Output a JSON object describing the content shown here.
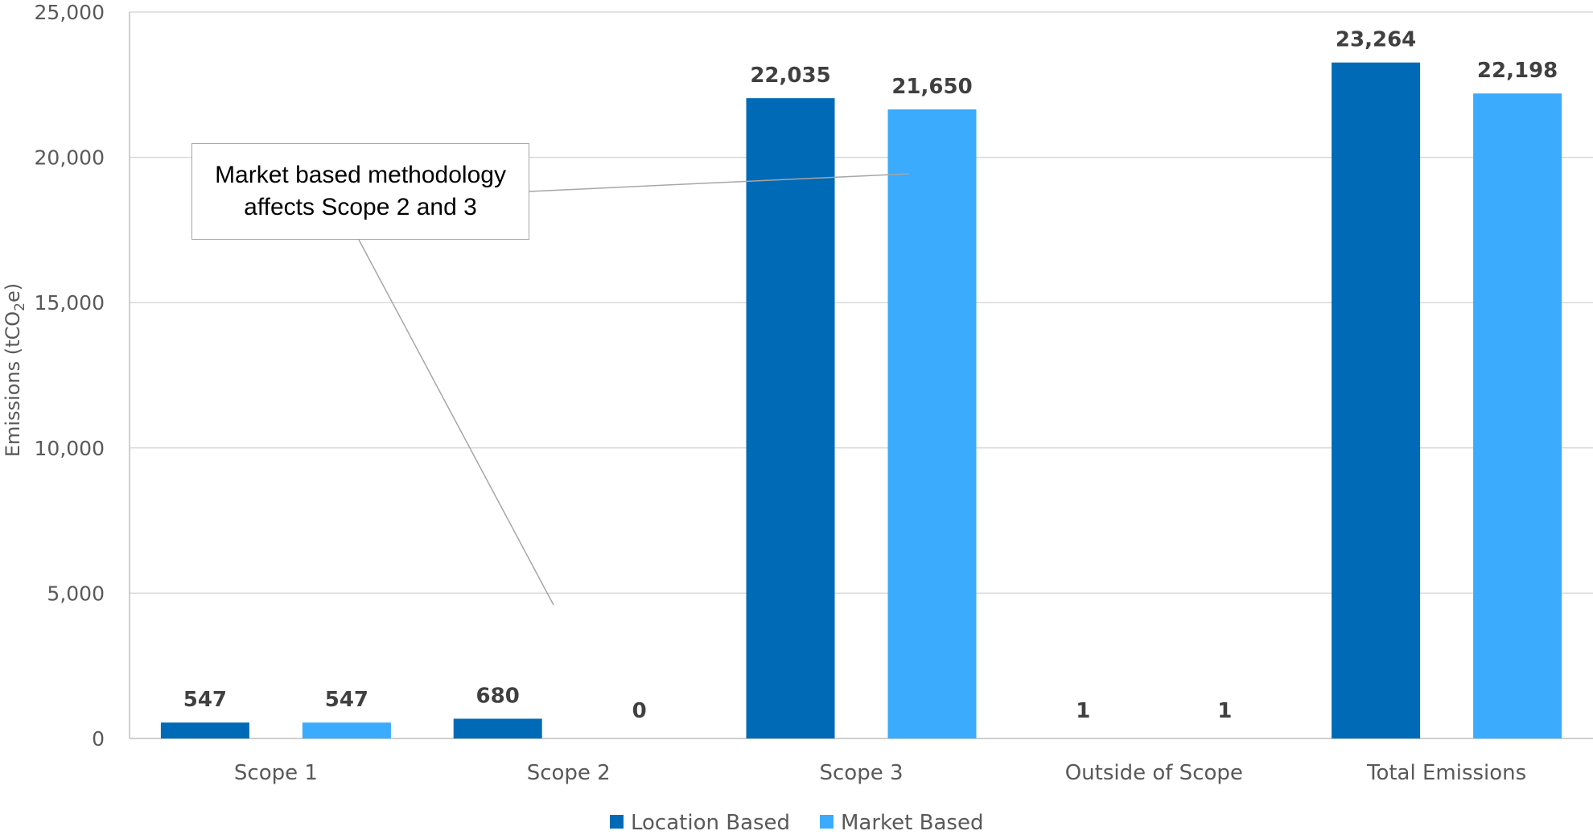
{
  "chart_data": {
    "type": "bar",
    "categories": [
      "Scope 1",
      "Scope 2",
      "Scope 3",
      "Outside of Scope",
      "Total Emissions"
    ],
    "series": [
      {
        "name": "Location Based",
        "values": [
          547,
          680,
          22035,
          1,
          23264
        ],
        "labels": [
          "547",
          "680",
          "22,035",
          "1",
          "23,264"
        ],
        "color": "#006ab7"
      },
      {
        "name": "Market Based",
        "values": [
          547,
          0,
          21650,
          1,
          22198
        ],
        "labels": [
          "547",
          "0",
          "21,650",
          "1",
          "22,198"
        ],
        "color": "#3aabfd"
      }
    ],
    "ylim": [
      0,
      25000
    ],
    "yticks": [
      {
        "value": 0,
        "label": "0"
      },
      {
        "value": 5000,
        "label": "5,000"
      },
      {
        "value": 10000,
        "label": "10,000"
      },
      {
        "value": 15000,
        "label": "15,000"
      },
      {
        "value": 20000,
        "label": "20,000"
      },
      {
        "value": 25000,
        "label": "25,000"
      }
    ],
    "ylabel": "Emissions (tCO2e)",
    "ylabel_parts": {
      "prefix": "Emissions (tCO",
      "subscript": "2",
      "suffix": "e)"
    },
    "grid": true,
    "legend_placement": "bottom-center",
    "annotation": {
      "text": "Market based methodology affects Scope 2 and 3",
      "lines": [
        "Market based methodology",
        "affects Scope 2 and 3"
      ]
    },
    "colors": {
      "gridline": "#d9d9d9",
      "axis": "#bfbfbf",
      "annotation_border": "#a6a6a6"
    }
  }
}
